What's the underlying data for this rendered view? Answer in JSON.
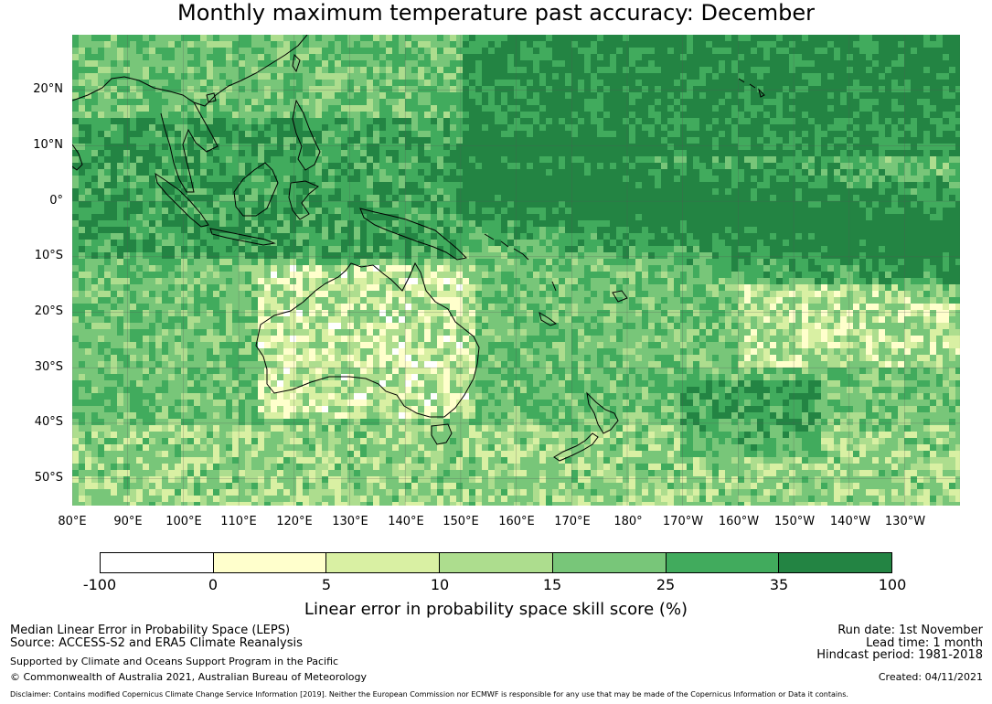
{
  "title": "Monthly maximum temperature past accuracy: December",
  "map": {
    "latitude_labels": [
      "20°N",
      "10°N",
      "0°",
      "10°S",
      "20°S",
      "30°S",
      "40°S",
      "50°S"
    ],
    "longitude_labels": [
      "80°E",
      "90°E",
      "100°E",
      "110°E",
      "120°E",
      "130°E",
      "140°E",
      "150°E",
      "160°E",
      "170°E",
      "180°",
      "170°W",
      "160°W",
      "150°W",
      "140°W",
      "130°W"
    ],
    "land_outline_color": "#000000",
    "gridline_color": "#555555"
  },
  "colorbar": {
    "ticks": [
      "-100",
      "0",
      "5",
      "10",
      "15",
      "25",
      "35",
      "100"
    ],
    "colors": [
      "#ffffff",
      "#ffffcc",
      "#d9f0a3",
      "#addd8e",
      "#78c679",
      "#41ab5d",
      "#238443"
    ],
    "label": "Linear error in probability space skill score (%)"
  },
  "info": {
    "method": "Median Linear Error in Probability Space (LEPS)",
    "source": "Source: ACCESS-S2 and ERA5 Climate Reanalysis",
    "support": "Supported by Climate and Oceans Support Program in the Pacific",
    "copyright": "© Commonwealth of Australia 2021, Australian Bureau of Meteorology",
    "run_date": "Run date: 1st November",
    "lead_time": "Lead time: 1 month",
    "hindcast": "Hindcast period: 1981-2018",
    "created": "Created: 04/11/2021",
    "disclaimer": "Disclaimer: Contains modified Copernicus Climate Change Service Information [2019]. Neither the European Commission nor ECMWF is responsible for any use that may be made of the Copernicus Information or Data it contains."
  }
}
